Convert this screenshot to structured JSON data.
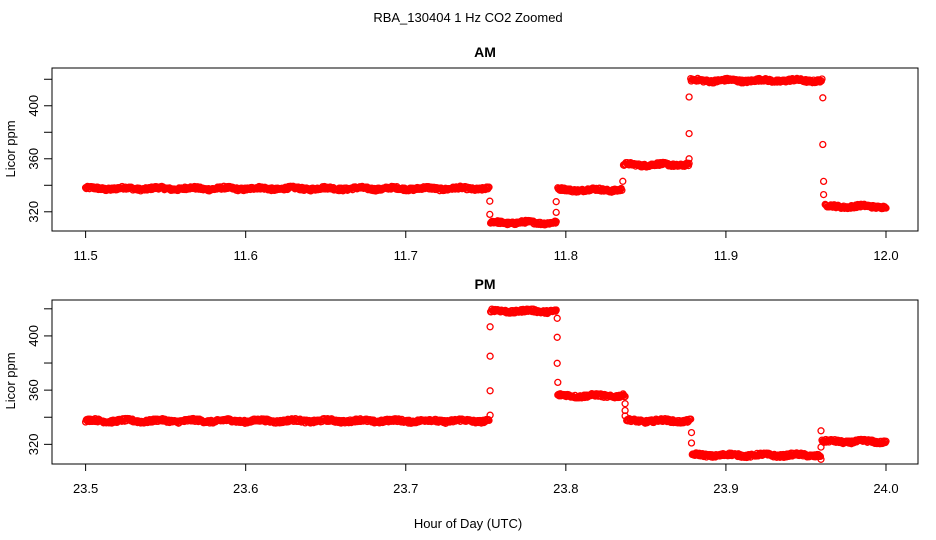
{
  "title": "RBA_130404  1 Hz CO2 Zoomed",
  "xlabel": "Hour of Day (UTC)",
  "chart_data": [
    {
      "type": "scatter",
      "title": "AM",
      "ylabel": "Licor ppm",
      "xlim": [
        11.479,
        12.02
      ],
      "ylim": [
        305.5,
        428.5
      ],
      "x_ticks": [
        11.5,
        11.6,
        11.7,
        11.8,
        11.9,
        12.0
      ],
      "x_tick_labels": [
        "11.5",
        "11.6",
        "11.7",
        "11.8",
        "11.9",
        "12.0"
      ],
      "y_ticks": [
        320,
        340,
        360,
        380,
        400,
        420
      ],
      "y_tick_labels": [
        "320",
        "",
        "360",
        "",
        "400",
        ""
      ],
      "grid": false,
      "marker": "open-circle",
      "color": "#ff0000",
      "plateaus": [
        {
          "x_start": 11.5,
          "x_end": 11.752,
          "y": 337.5
        },
        {
          "x_start": 11.753,
          "x_end": 11.794,
          "y": 311.8
        },
        {
          "x_start": 11.795,
          "x_end": 11.835,
          "y": 336.5
        },
        {
          "x_start": 11.836,
          "x_end": 11.877,
          "y": 355.5
        },
        {
          "x_start": 11.878,
          "x_end": 11.96,
          "y": 419.0
        },
        {
          "x_start": 11.962,
          "x_end": 12.0,
          "y": 324.0
        }
      ],
      "transition_points": [
        {
          "x": 11.7525,
          "y": 328
        },
        {
          "x": 11.7525,
          "y": 318
        },
        {
          "x": 11.794,
          "y": 319.5
        },
        {
          "x": 11.794,
          "y": 327.6
        },
        {
          "x": 11.8356,
          "y": 343
        },
        {
          "x": 11.877,
          "y": 360
        },
        {
          "x": 11.877,
          "y": 379
        },
        {
          "x": 11.877,
          "y": 406.6
        },
        {
          "x": 11.9605,
          "y": 406
        },
        {
          "x": 11.9605,
          "y": 370.8
        },
        {
          "x": 11.961,
          "y": 342.9
        },
        {
          "x": 11.961,
          "y": 333
        }
      ]
    },
    {
      "type": "scatter",
      "title": "PM",
      "ylabel": "Licor ppm",
      "xlim": [
        23.479,
        24.02
      ],
      "ylim": [
        305.5,
        426.5
      ],
      "x_ticks": [
        23.5,
        23.6,
        23.7,
        23.8,
        23.9,
        24.0
      ],
      "x_tick_labels": [
        "23.5",
        "23.6",
        "23.7",
        "23.8",
        "23.9",
        "24.0"
      ],
      "y_ticks": [
        320,
        340,
        360,
        380,
        400,
        420
      ],
      "y_tick_labels": [
        "320",
        "",
        "360",
        "",
        "400",
        ""
      ],
      "grid": false,
      "marker": "open-circle",
      "color": "#ff0000",
      "plateaus": [
        {
          "x_start": 23.5,
          "x_end": 23.752,
          "y": 337.3
        },
        {
          "x_start": 23.753,
          "x_end": 23.794,
          "y": 418.3
        },
        {
          "x_start": 23.795,
          "x_end": 23.837,
          "y": 355.8
        },
        {
          "x_start": 23.838,
          "x_end": 23.878,
          "y": 337.3
        },
        {
          "x_start": 23.879,
          "x_end": 23.959,
          "y": 312.0
        },
        {
          "x_start": 23.96,
          "x_end": 24.0,
          "y": 322.0
        }
      ],
      "transition_points": [
        {
          "x": 23.7527,
          "y": 341.5
        },
        {
          "x": 23.7527,
          "y": 359.5
        },
        {
          "x": 23.7527,
          "y": 385
        },
        {
          "x": 23.7527,
          "y": 406.7
        },
        {
          "x": 23.7946,
          "y": 413
        },
        {
          "x": 23.7946,
          "y": 399
        },
        {
          "x": 23.7946,
          "y": 379.8
        },
        {
          "x": 23.795,
          "y": 365.7
        },
        {
          "x": 23.837,
          "y": 350
        },
        {
          "x": 23.837,
          "y": 345
        },
        {
          "x": 23.837,
          "y": 341
        },
        {
          "x": 23.8785,
          "y": 328.7
        },
        {
          "x": 23.8785,
          "y": 321
        },
        {
          "x": 23.9594,
          "y": 309
        },
        {
          "x": 23.9594,
          "y": 318
        },
        {
          "x": 23.9594,
          "y": 330
        }
      ]
    }
  ]
}
